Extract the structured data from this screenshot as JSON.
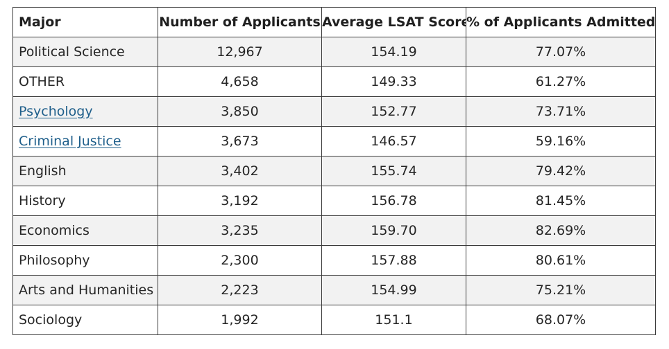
{
  "table": {
    "headers": [
      "Major",
      "Number of Applicants",
      "Average LSAT Score",
      "% of Applicants Admitted"
    ],
    "rows": [
      {
        "major": "Political Science",
        "applicants": "12,967",
        "lsat": "154.19",
        "admitted": "77.07%",
        "link": false
      },
      {
        "major": "OTHER",
        "applicants": "4,658",
        "lsat": "149.33",
        "admitted": "61.27%",
        "link": false
      },
      {
        "major": "Psychology",
        "applicants": "3,850",
        "lsat": "152.77",
        "admitted": "73.71%",
        "link": true
      },
      {
        "major": "Criminal Justice",
        "applicants": "3,673",
        "lsat": "146.57",
        "admitted": "59.16%",
        "link": true
      },
      {
        "major": "English",
        "applicants": "3,402",
        "lsat": "155.74",
        "admitted": "79.42%",
        "link": false
      },
      {
        "major": "History",
        "applicants": "3,192",
        "lsat": "156.78",
        "admitted": "81.45%",
        "link": false
      },
      {
        "major": "Economics",
        "applicants": "3,235",
        "lsat": "159.70",
        "admitted": "82.69%",
        "link": false
      },
      {
        "major": "Philosophy",
        "applicants": "2,300",
        "lsat": "157.88",
        "admitted": "80.61%",
        "link": false
      },
      {
        "major": "Arts and Humanities",
        "applicants": "2,223",
        "lsat": "154.99",
        "admitted": "75.21%",
        "link": false
      },
      {
        "major": "Sociology",
        "applicants": "1,992",
        "lsat": "151.1",
        "admitted": "68.07%",
        "link": false
      }
    ]
  },
  "colors": {
    "link": "#1f5f8b",
    "border": "#3a3a3a",
    "stripe": "#f2f2f2"
  }
}
